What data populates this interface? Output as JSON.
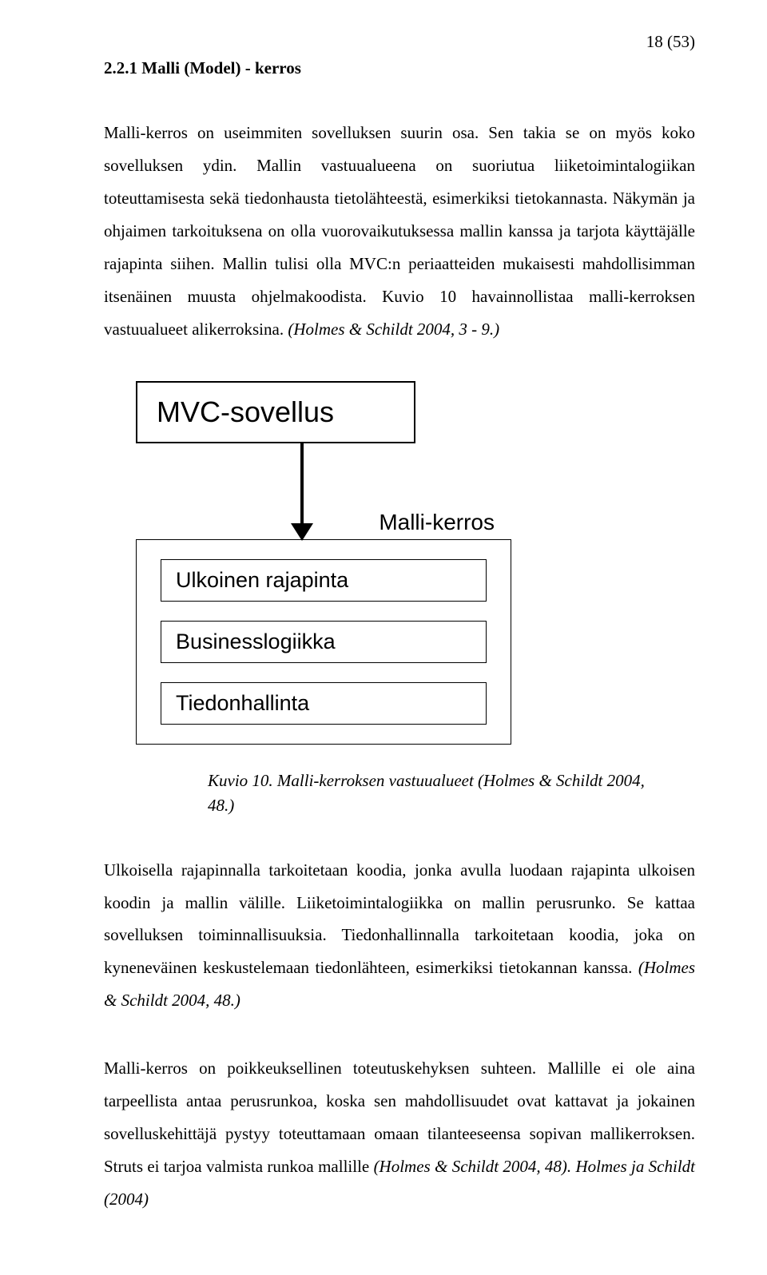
{
  "page_number": "18 (53)",
  "heading": "2.2.1 Malli (Model) - kerros",
  "paragraph1": "Malli-kerros on useimmiten sovelluksen suurin osa. Sen takia se on myös koko sovelluksen ydin. Mallin vastuualueena on suoriutua liiketoimintalogiikan toteuttamisesta sekä tiedonhausta tietolähteestä, esimerkiksi tietokannasta. Näkymän ja ohjaimen tarkoituksena on olla vuorovaikutuksessa mallin kanssa ja tarjota käyttäjälle rajapinta siihen. Mallin tulisi olla MVC:n periaatteiden mukaisesti mahdollisimman itsenäinen muusta ohjelmakoodista. Kuvio 10 havainnollistaa malli-kerroksen vastuualueet alikerroksina. ",
  "paragraph1_cite": "(Holmes & Schildt 2004, 3 - 9.)",
  "diagram": {
    "top_title": "MVC-sovellus",
    "layer_label": "Malli-kerros",
    "inner_boxes": [
      "Ulkoinen rajapinta",
      "Businesslogiikka",
      "Tiedonhallinta"
    ]
  },
  "caption": "Kuvio 10. Malli-kerroksen vastuualueet (Holmes & Schildt 2004, 48.)",
  "paragraph2": "Ulkoisella rajapinnalla tarkoitetaan koodia, jonka avulla luodaan rajapinta ulkoisen koodin ja mallin välille. Liiketoimintalogiikka on mallin perusrunko. Se kattaa sovelluksen toiminnallisuuksia. Tiedonhallinnalla tarkoitetaan koodia, joka on kyneneväinen keskustelemaan tiedonlähteen, esimerkiksi tietokannan kanssa. ",
  "paragraph2_cite": "(Holmes & Schildt 2004, 48.)",
  "paragraph3_a": "Malli-kerros on poikkeuksellinen toteutuskehyksen suhteen. Mallille ei ole aina tarpeellista antaa perusrunkoa, koska sen mahdollisuudet ovat kattavat ja jokainen sovelluskehittäjä pystyy toteuttamaan omaan tilanteeseensa sopivan mallikerroksen. Struts ei tarjoa valmista runkoa mallille ",
  "paragraph3_cite": "(Holmes & Schildt 2004, 48). ",
  "paragraph3_b": " Holmes ja Schildt (2004)"
}
